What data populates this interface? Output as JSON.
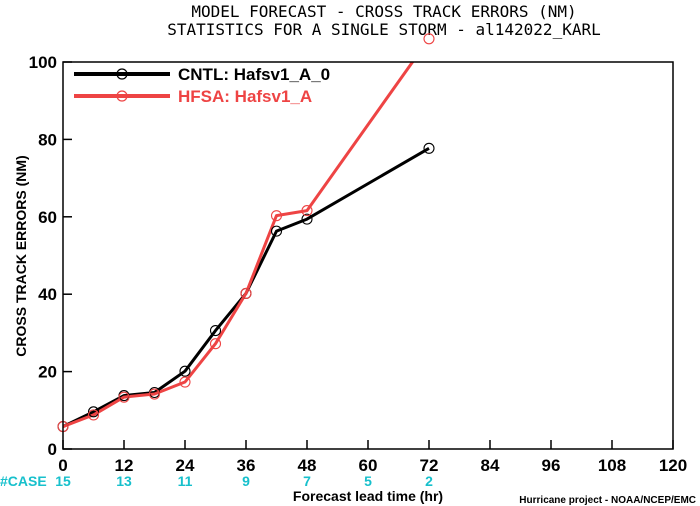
{
  "chart_data": {
    "type": "line",
    "title_line1": "MODEL FORECAST - CROSS TRACK ERRORS (NM)",
    "title_line2": "STATISTICS FOR A SINGLE STORM - al142022_KARL",
    "xlabel": "Forecast lead time (hr)",
    "ylabel": "CROSS TRACK ERRORS (NM)",
    "xlim": [
      0,
      120
    ],
    "ylim": [
      0,
      100
    ],
    "x_ticks": [
      0,
      12,
      24,
      36,
      48,
      60,
      72,
      84,
      96,
      108,
      120
    ],
    "y_ticks": [
      0,
      20,
      40,
      60,
      80,
      100
    ],
    "x_tick_labels": [
      "0",
      "12",
      "24",
      "36",
      "48",
      "60",
      "72",
      "84",
      "96",
      "108",
      "120"
    ],
    "y_tick_labels": [
      "0",
      "20",
      "40",
      "60",
      "80",
      "100"
    ],
    "grid": false,
    "legend_position": "top-left",
    "series": [
      {
        "name": "CNTL: Hafsv1_A_0",
        "color": "#000000",
        "x": [
          0,
          6,
          12,
          18,
          24,
          30,
          36,
          42,
          48,
          72
        ],
        "values": [
          5.8,
          9.6,
          13.8,
          14.6,
          20.1,
          30.6,
          40.2,
          56.3,
          59.4,
          77.7
        ]
      },
      {
        "name": "HFSA: Hafsv1_A",
        "color": "#ee4444",
        "x": [
          0,
          6,
          12,
          18,
          24,
          30,
          36,
          42,
          48,
          72
        ],
        "values": [
          5.8,
          8.8,
          13.4,
          14.2,
          17.3,
          27.2,
          40.2,
          60.3,
          61.6,
          106
        ]
      }
    ],
    "cases": {
      "label": "#CASE",
      "x": [
        0,
        12,
        24,
        36,
        48,
        60,
        72
      ],
      "values": [
        "15",
        "13",
        "11",
        "9",
        "7",
        "5",
        "2"
      ]
    },
    "credit": "Hurricane project - NOAA/NCEP/EMC"
  }
}
